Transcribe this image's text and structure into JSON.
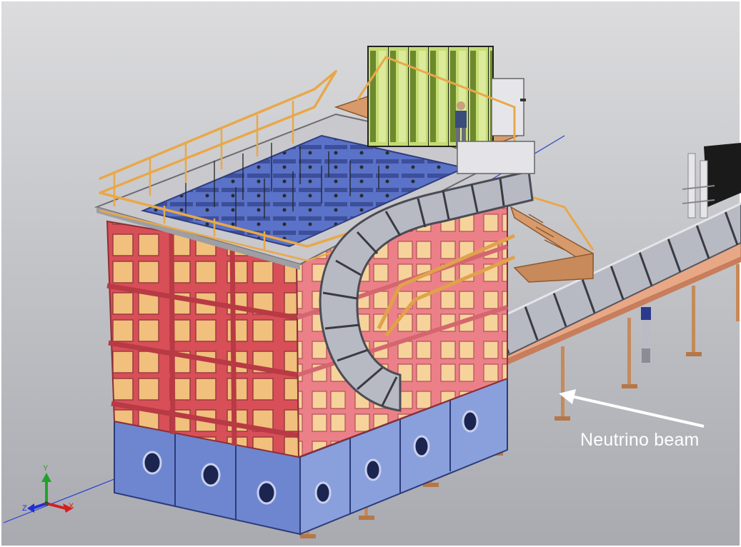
{
  "annotation": {
    "label": "Neutrino beam",
    "arrow_color": "#ffffff"
  },
  "triad": {
    "y_label": "Y",
    "x_label": "X",
    "z_label": "Z"
  },
  "colors": {
    "frame_red": "#de5a62",
    "panel_tan": "#f0c07c",
    "base_blue": "#6d86cf",
    "railing_orange": "#e8a84a",
    "rack_green": "#c5dc74",
    "chain_grey": "#b8bac4",
    "background": "#c4c5c9"
  }
}
